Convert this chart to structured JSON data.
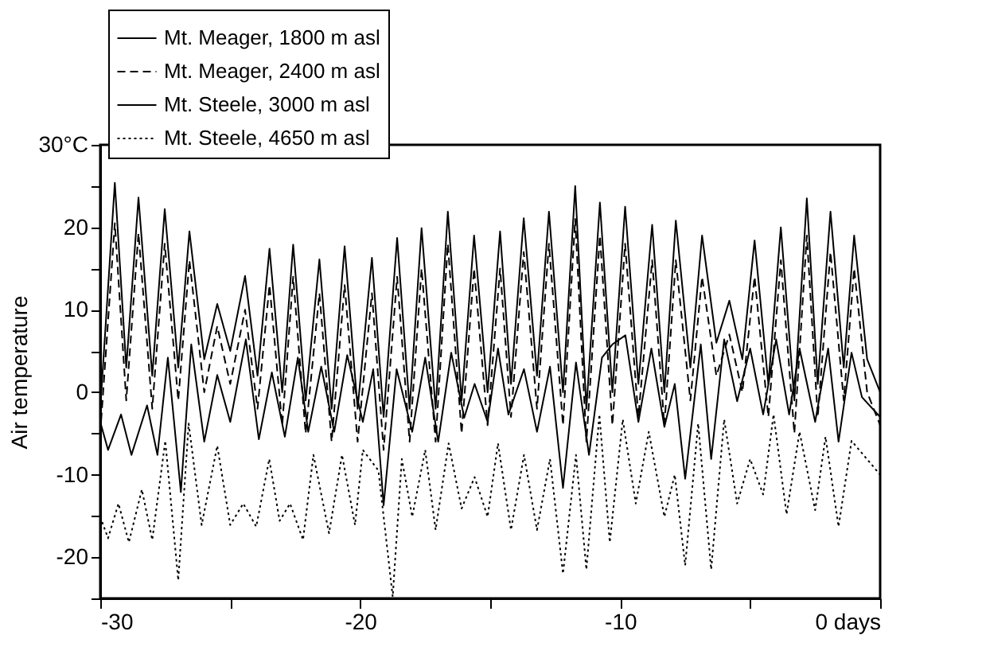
{
  "chart_data": {
    "type": "line",
    "ylabel": "Air temperature",
    "xlim": [
      -30,
      0
    ],
    "xticks": [
      -30,
      {
        "value": -25,
        "label": null
      },
      -20,
      {
        "value": -15,
        "label": null
      },
      -10,
      {
        "value": -5,
        "label": null
      },
      {
        "value": 0,
        "label": "0 days"
      }
    ],
    "ylim": [
      -25,
      30
    ],
    "yticks": [
      {
        "value": -25,
        "label": null
      },
      -20,
      {
        "value": -15,
        "label": null
      },
      -10,
      {
        "value": -5,
        "label": null
      },
      0,
      {
        "value": 5,
        "label": null
      },
      10,
      {
        "value": 15,
        "label": null
      },
      20,
      {
        "value": 25,
        "label": null
      },
      {
        "value": 30,
        "label": "30°C"
      }
    ],
    "grid": false,
    "legend": "top left",
    "marker": "none",
    "series": [
      {
        "name": "Mt. Meager, 1800 m asl",
        "color": "#000000",
        "line_style": "solid",
        "x": [
          -30,
          -29.44,
          -29.0,
          -28.53,
          -28.0,
          -27.52,
          -27.0,
          -26.57,
          -26.0,
          -25.5,
          -25.0,
          -24.43,
          -23.95,
          -23.49,
          -23.0,
          -22.58,
          -22.1,
          -21.57,
          -21.1,
          -20.6,
          -20.1,
          -19.55,
          -19.1,
          -18.58,
          -18.1,
          -17.64,
          -17.1,
          -16.63,
          -16.1,
          -15.62,
          -15.1,
          -14.62,
          -14.2,
          -13.71,
          -13.2,
          -12.74,
          -12.2,
          -11.73,
          -11.3,
          -10.78,
          -10.3,
          -9.81,
          -9.3,
          -8.77,
          -8.3,
          -7.86,
          -7.3,
          -6.85,
          -6.3,
          -5.8,
          -5.3,
          -4.83,
          -4.3,
          -3.82,
          -3.3,
          -2.82,
          -2.4,
          -1.91,
          -1.4,
          -1.0,
          -0.5,
          0
        ],
        "values": [
          -2,
          25.4,
          3,
          23.6,
          2,
          22.2,
          3,
          19.5,
          4,
          10.7,
          5,
          14.1,
          2,
          17.4,
          0,
          17.9,
          -1,
          16.1,
          -2,
          17.7,
          -2,
          16.3,
          -3,
          18.7,
          -2,
          19.9,
          -2,
          21.9,
          -1,
          19.0,
          0,
          19.5,
          1,
          21.1,
          2,
          21.9,
          0,
          25.0,
          -2,
          23.0,
          0,
          22.5,
          1,
          20.3,
          0,
          20.8,
          3,
          19.0,
          6,
          11.1,
          4,
          18.4,
          1,
          20.0,
          -1,
          23.5,
          1,
          21.9,
          3,
          19.0,
          4,
          0
        ]
      },
      {
        "name": "Mt. Meager, 2400 m asl",
        "color": "#000000",
        "line_style": "dashed",
        "x": [
          -30,
          -29.44,
          -29.0,
          -28.53,
          -28.0,
          -27.52,
          -27.0,
          -26.57,
          -26.0,
          -25.5,
          -25.0,
          -24.43,
          -23.95,
          -23.49,
          -23.0,
          -22.58,
          -22.1,
          -21.57,
          -21.1,
          -20.6,
          -20.1,
          -19.55,
          -19.1,
          -18.58,
          -18.1,
          -17.64,
          -17.1,
          -16.63,
          -16.1,
          -15.62,
          -15.1,
          -14.62,
          -14.2,
          -13.71,
          -13.2,
          -12.74,
          -12.2,
          -11.73,
          -11.3,
          -10.78,
          -10.3,
          -9.81,
          -9.3,
          -8.77,
          -8.3,
          -7.86,
          -7.3,
          -6.85,
          -6.3,
          -5.8,
          -5.3,
          -4.83,
          -4.3,
          -3.82,
          -3.3,
          -2.82,
          -2.4,
          -1.91,
          -1.4,
          -1.0,
          -0.5,
          0
        ],
        "values": [
          -5,
          20.5,
          -1,
          19.3,
          -2,
          18,
          -1,
          16,
          0,
          8,
          1,
          10,
          -2,
          13,
          -4,
          14,
          -5,
          12,
          -6,
          13,
          -6,
          12,
          -7,
          14,
          -6,
          15,
          -6,
          18,
          -5,
          15,
          -4,
          15,
          -3,
          17,
          -2,
          18,
          -4,
          21,
          -6,
          19,
          -4,
          18,
          -3,
          16,
          -4,
          16,
          -1,
          14,
          2,
          7,
          0,
          14,
          -3,
          16,
          -5,
          19,
          -3,
          17,
          -1,
          15,
          0,
          -4
        ]
      },
      {
        "name": "Mt. Steele, 3000 m asl",
        "color": "#000000",
        "line_style": "solid",
        "x": [
          -30,
          -29.7,
          -29.2,
          -28.8,
          -28.2,
          -27.8,
          -27.4,
          -26.9,
          -26.5,
          -26.0,
          -25.5,
          -25.0,
          -24.4,
          -23.9,
          -23.4,
          -22.9,
          -22.4,
          -22.0,
          -21.5,
          -21.0,
          -20.5,
          -19.9,
          -19.5,
          -19.1,
          -18.6,
          -18.0,
          -17.5,
          -17.0,
          -16.5,
          -16.0,
          -15.6,
          -15.1,
          -14.7,
          -14.3,
          -13.7,
          -13.2,
          -12.7,
          -12.2,
          -11.7,
          -11.2,
          -10.7,
          -10.3,
          -9.8,
          -9.3,
          -8.8,
          -8.3,
          -7.9,
          -7.5,
          -6.9,
          -6.5,
          -6.0,
          -5.5,
          -5.0,
          -4.5,
          -4.0,
          -3.5,
          -3.1,
          -2.5,
          -2.0,
          -1.6,
          -1.1,
          -0.7,
          0
        ],
        "values": [
          -3.6,
          -7.0,
          -2.7,
          -7.6,
          -1.6,
          -7.6,
          4.2,
          -12.1,
          5.8,
          -6.0,
          2.1,
          -3.6,
          6.4,
          -5.7,
          2.4,
          -5.4,
          4.2,
          -4.8,
          3.1,
          -4.8,
          4.5,
          -3.6,
          2.8,
          -13.7,
          2.8,
          -4.8,
          4.2,
          -6.0,
          4.8,
          -3.1,
          1.0,
          -3.6,
          5.3,
          -2.7,
          2.8,
          -4.8,
          3.1,
          -11.6,
          3.6,
          -7.6,
          4.2,
          5.8,
          6.9,
          -3.6,
          5.3,
          -4.2,
          1.0,
          -10.5,
          5.8,
          -8.1,
          6.4,
          -1.1,
          5.3,
          -2.7,
          6.4,
          -2.7,
          5.3,
          -3.6,
          5.3,
          -6.0,
          4.8,
          -0.6,
          -3
        ]
      },
      {
        "name": "Mt. Steele, 4650 m asl",
        "color": "#000000",
        "line_style": "dotted",
        "x": [
          -30,
          -29.7,
          -29.3,
          -28.9,
          -28.4,
          -28.0,
          -27.5,
          -27.0,
          -26.6,
          -26.1,
          -25.5,
          -25.0,
          -24.5,
          -24.0,
          -23.5,
          -23.1,
          -22.7,
          -22.2,
          -21.8,
          -21.2,
          -20.7,
          -20.2,
          -19.9,
          -19.3,
          -18.75,
          -18.4,
          -18.0,
          -17.5,
          -17.1,
          -16.6,
          -16.1,
          -15.6,
          -15.1,
          -14.7,
          -14.2,
          -13.7,
          -13.2,
          -12.7,
          -12.2,
          -11.7,
          -11.3,
          -10.8,
          -10.4,
          -9.9,
          -9.4,
          -8.9,
          -8.3,
          -7.9,
          -7.5,
          -7.0,
          -6.5,
          -6.0,
          -5.5,
          -5.0,
          -4.5,
          -4.1,
          -3.6,
          -3.1,
          -2.5,
          -2.1,
          -1.6,
          -1.1,
          0
        ],
        "values": [
          -15.1,
          -17.7,
          -13.5,
          -18.2,
          -11.8,
          -17.9,
          -5.9,
          -22.8,
          -3.8,
          -16.1,
          -6.5,
          -16.1,
          -13.5,
          -16.3,
          -8.1,
          -15.6,
          -13.5,
          -17.9,
          -7.6,
          -17.1,
          -7.6,
          -16.1,
          -7.0,
          -9.5,
          -24.8,
          -8.1,
          -15.1,
          -7.0,
          -16.7,
          -6.2,
          -14.1,
          -10.3,
          -15.1,
          -6.2,
          -16.7,
          -7.6,
          -16.7,
          -8.1,
          -22.0,
          -7.6,
          -21.5,
          -2.7,
          -18.2,
          -3.3,
          -13.5,
          -4.8,
          -15.1,
          -10.0,
          -21.0,
          -3.8,
          -21.5,
          -3.3,
          -13.5,
          -8.1,
          -12.4,
          -2.7,
          -14.8,
          -4.8,
          -14.3,
          -5.4,
          -16.3,
          -5.9,
          -10
        ]
      }
    ]
  }
}
